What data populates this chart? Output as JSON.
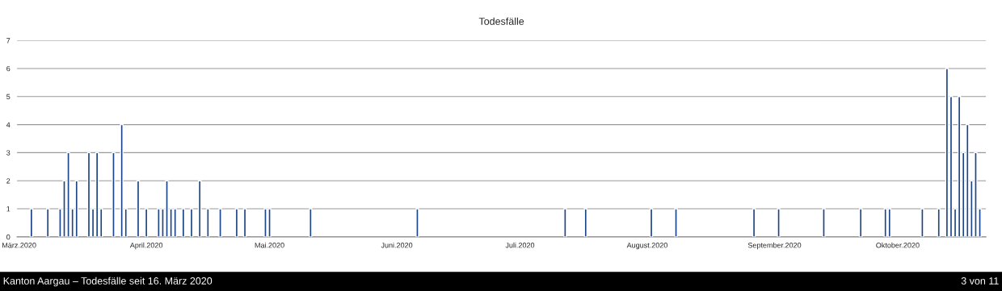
{
  "chart_data": {
    "type": "bar",
    "title": "Todesfälle",
    "x": [
      "2020-03-04",
      "2020-03-08",
      "2020-03-11",
      "2020-03-12",
      "2020-03-13",
      "2020-03-14",
      "2020-03-15",
      "2020-03-18",
      "2020-03-19",
      "2020-03-20",
      "2020-03-21",
      "2020-03-24",
      "2020-03-26",
      "2020-03-27",
      "2020-03-30",
      "2020-04-01",
      "2020-04-04",
      "2020-04-05",
      "2020-04-06",
      "2020-04-07",
      "2020-04-08",
      "2020-04-10",
      "2020-04-12",
      "2020-04-14",
      "2020-04-16",
      "2020-04-19",
      "2020-04-23",
      "2020-04-25",
      "2020-04-30",
      "2020-05-01",
      "2020-05-11",
      "2020-06-06",
      "2020-07-12",
      "2020-07-17",
      "2020-08-02",
      "2020-08-08",
      "2020-08-27",
      "2020-09-02",
      "2020-09-13",
      "2020-09-22",
      "2020-09-28",
      "2020-09-29",
      "2020-10-07",
      "2020-10-11",
      "2020-10-13",
      "2020-10-14",
      "2020-10-15",
      "2020-10-16",
      "2020-10-17",
      "2020-10-18",
      "2020-10-19",
      "2020-10-20",
      "2020-10-21"
    ],
    "values": [
      1,
      1,
      1,
      2,
      3,
      1,
      2,
      3,
      1,
      3,
      1,
      3,
      4,
      1,
      2,
      1,
      1,
      1,
      2,
      1,
      1,
      1,
      1,
      2,
      1,
      1,
      1,
      1,
      1,
      1,
      1,
      1,
      1,
      1,
      1,
      1,
      1,
      1,
      1,
      1,
      1,
      1,
      1,
      1,
      6,
      5,
      1,
      5,
      3,
      4,
      2,
      3,
      1
    ],
    "color": "#1c4587",
    "xlim": [
      "2020-02-29T12:00",
      "2020-10-22T12:00"
    ],
    "xticks": [
      {
        "value": "2020-03-01",
        "label": "März.2020"
      },
      {
        "value": "2020-04-01",
        "label": "April.2020"
      },
      {
        "value": "2020-05-01",
        "label": "Mai.2020"
      },
      {
        "value": "2020-06-01",
        "label": "Juni.2020"
      },
      {
        "value": "2020-07-01",
        "label": "Juli.2020"
      },
      {
        "value": "2020-08-01",
        "label": "August.2020"
      },
      {
        "value": "2020-09-01",
        "label": "September.2020"
      },
      {
        "value": "2020-10-01",
        "label": "Oktober.2020"
      }
    ],
    "ylim": [
      0,
      7
    ],
    "yticks": [
      0,
      1,
      2,
      3,
      4,
      5,
      6,
      7
    ],
    "grid": "y",
    "annotations": [
      "Kanton Aargau – Todesfälle seit 16. März 2020",
      "3 von 11"
    ]
  }
}
